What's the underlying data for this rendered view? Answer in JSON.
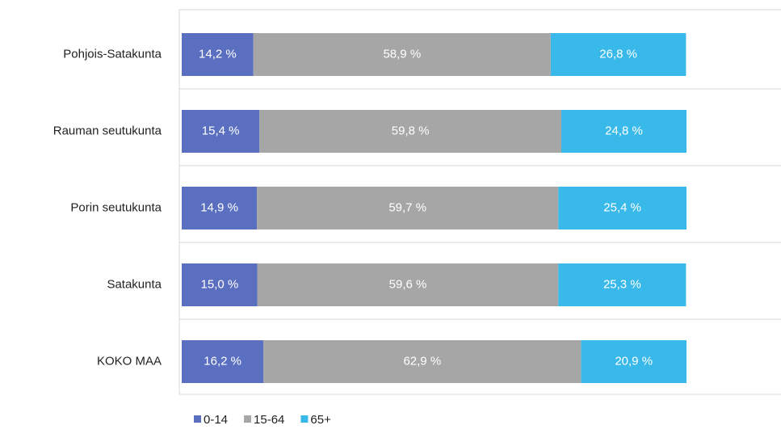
{
  "chart_data": {
    "type": "stacked-bar-horizontal",
    "categories": [
      "Pohjois-Satakunta",
      "Rauman seutukunta",
      "Porin seutukunta",
      "Satakunta",
      "KOKO MAA"
    ],
    "xlim": [
      0,
      100
    ],
    "legend": "bottom-left",
    "series": [
      {
        "name": "0-14",
        "color": "#5b6fc1",
        "values": [
          14.2,
          15.4,
          14.9,
          15.0,
          16.2
        ],
        "value_labels": [
          "14,2 %",
          "15,4 %",
          "14,9 %",
          "15,0 %",
          "16,2 %"
        ]
      },
      {
        "name": "15-64",
        "color": "#a6a6a6",
        "values": [
          58.9,
          59.8,
          59.7,
          59.6,
          62.9
        ],
        "value_labels": [
          "58,9 %",
          "59,8 %",
          "59,7 %",
          "59,6 %",
          "62,9 %"
        ]
      },
      {
        "name": "65+",
        "color": "#38b9e9",
        "values": [
          26.8,
          24.8,
          25.4,
          25.3,
          20.9
        ],
        "value_labels": [
          "26,8 %",
          "24,8 %",
          "25,4 %",
          "25,3 %",
          "20,9 %"
        ]
      }
    ]
  }
}
